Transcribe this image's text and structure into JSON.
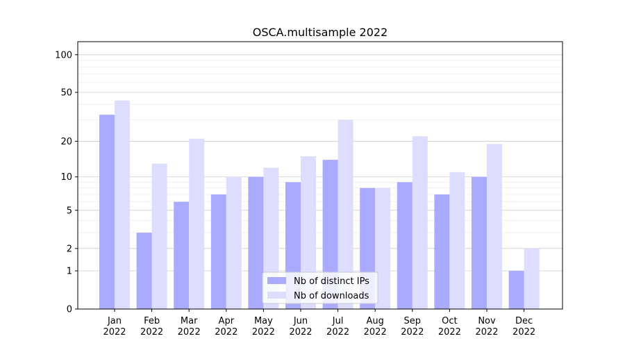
{
  "chart_data": {
    "type": "bar",
    "title": "OSCA.multisample 2022",
    "xlabel": "",
    "ylabel": "",
    "yscale": "log(1+y)",
    "ylim": [
      0,
      127
    ],
    "yticks": [
      0,
      1,
      2,
      5,
      10,
      20,
      50,
      100
    ],
    "grid": true,
    "legend_placement": "bottom-center",
    "categories": [
      "Jan\n2022",
      "Feb\n2022",
      "Mar\n2022",
      "Apr\n2022",
      "May\n2022",
      "Jun\n2022",
      "Jul\n2022",
      "Aug\n2022",
      "Sep\n2022",
      "Oct\n2022",
      "Nov\n2022",
      "Dec\n2022"
    ],
    "series": [
      {
        "name": "Nb of distinct IPs",
        "color": "#aaaaff",
        "values": [
          33,
          3,
          6,
          7,
          10,
          9,
          14,
          8,
          9,
          7,
          10,
          1
        ]
      },
      {
        "name": "Nb of downloads",
        "color": "#ddddff",
        "values": [
          43,
          13,
          21,
          10,
          12,
          15,
          30,
          8,
          22,
          11,
          19,
          2
        ]
      }
    ]
  }
}
